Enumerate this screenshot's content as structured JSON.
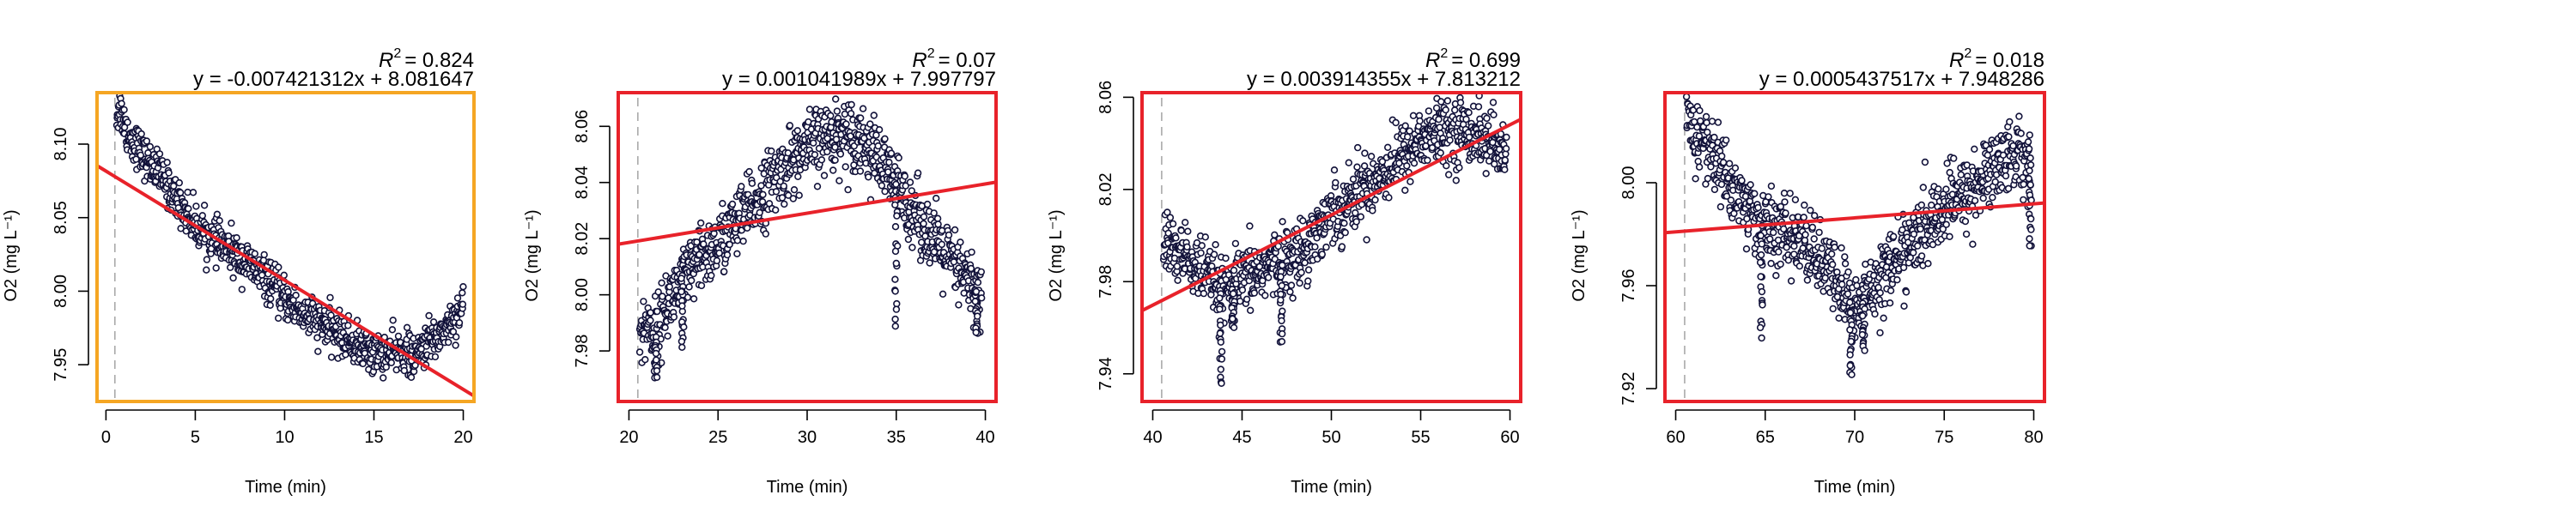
{
  "chart_data": [
    {
      "type": "scatter",
      "ylabel": "O2 (mg L⁻¹)",
      "xlabel": "Time (min)",
      "r2_label": "R",
      "r2_sup": "2",
      "r2_value": "= 0.824",
      "equation": "y = -0.007421312x + 8.081647",
      "frame_color": "#f5a623",
      "xlim": [
        -0.5,
        20.6
      ],
      "ylim": [
        7.925,
        8.135
      ],
      "xticks": [
        0,
        5,
        10,
        15,
        20
      ],
      "xtick_labels": [
        "0",
        "5",
        "10",
        "15",
        "20"
      ],
      "yticks": [
        7.95,
        8.0,
        8.05,
        8.1
      ],
      "ytick_labels": [
        "7.95",
        "8.00",
        "8.05",
        "8.10"
      ],
      "vline_x": 0.5,
      "fit": {
        "slope": -0.007421312,
        "intercept": 8.081647
      },
      "trend_x": [
        0.6,
        0.8,
        1.0,
        1.3,
        1.7,
        2.2,
        3.0,
        4.0,
        5.0,
        6.0,
        7.0,
        8.0,
        9.0,
        10.0,
        11.0,
        12.0,
        13.0,
        14.0,
        15.0,
        16.0,
        16.8,
        17.2,
        17.6,
        18.0,
        18.5,
        19.0,
        19.5,
        20.0
      ],
      "trend_y": [
        8.12,
        8.125,
        8.115,
        8.105,
        8.1,
        8.09,
        8.08,
        8.062,
        8.045,
        8.035,
        8.027,
        8.018,
        8.008,
        7.995,
        7.985,
        7.978,
        7.971,
        7.963,
        7.958,
        7.958,
        7.96,
        7.952,
        7.96,
        7.965,
        7.968,
        7.975,
        7.982,
        7.99
      ],
      "noise": 0.007,
      "dips": []
    },
    {
      "type": "scatter",
      "ylabel": "O2 (mg L⁻¹)",
      "xlabel": "Time (min)",
      "r2_label": "R",
      "r2_sup": "2",
      "r2_value": "= 0.07",
      "equation": "y = 0.001041989x + 7.997797",
      "frame_color": "#e8222a",
      "xlim": [
        19.4,
        40.6
      ],
      "ylim": [
        7.962,
        8.072
      ],
      "xticks": [
        20,
        25,
        30,
        35,
        40
      ],
      "xtick_labels": [
        "20",
        "25",
        "30",
        "35",
        "40"
      ],
      "yticks": [
        7.98,
        8.0,
        8.02,
        8.04,
        8.06
      ],
      "ytick_labels": [
        "7.98",
        "8.00",
        "8.02",
        "8.04",
        "8.06"
      ],
      "vline_x": 20.5,
      "fit": {
        "slope": 0.001041989,
        "intercept": 7.997797
      },
      "trend_x": [
        20.6,
        21.0,
        21.5,
        22.0,
        23.0,
        24.0,
        25.0,
        26.0,
        27.0,
        28.0,
        29.0,
        30.0,
        31.0,
        32.0,
        33.0,
        34.0,
        35.0,
        36.0,
        37.0,
        38.0,
        39.0,
        39.8
      ],
      "trend_y": [
        7.985,
        7.99,
        7.985,
        7.995,
        8.005,
        8.012,
        8.018,
        8.025,
        8.032,
        8.04,
        8.047,
        8.052,
        8.056,
        8.058,
        8.056,
        8.048,
        8.038,
        8.03,
        8.02,
        8.012,
        8.005,
        8.0
      ],
      "noise": 0.006,
      "dips": [
        {
          "x": 21.5,
          "y": 7.97
        },
        {
          "x": 23.0,
          "y": 7.982
        },
        {
          "x": 35.0,
          "y": 7.988
        },
        {
          "x": 39.5,
          "y": 7.986
        }
      ]
    },
    {
      "type": "scatter",
      "ylabel": "O2 (mg L⁻¹)",
      "xlabel": "Time (min)",
      "r2_label": "R",
      "r2_sup": "2",
      "r2_value": "= 0.699",
      "equation": "y = 0.003914355x + 7.813212",
      "frame_color": "#e8222a",
      "xlim": [
        39.4,
        60.6
      ],
      "ylim": [
        7.928,
        8.062
      ],
      "xticks": [
        40,
        45,
        50,
        55,
        60
      ],
      "xtick_labels": [
        "40",
        "45",
        "50",
        "55",
        "60"
      ],
      "yticks": [
        7.94,
        7.98,
        8.02,
        8.06
      ],
      "ytick_labels": [
        "7.94",
        "7.98",
        "8.02",
        "8.06"
      ],
      "vline_x": 40.5,
      "fit": {
        "slope": 0.003914355,
        "intercept": 7.813212
      },
      "trend_x": [
        40.6,
        41.0,
        42.0,
        43.0,
        44.0,
        45.0,
        46.0,
        47.0,
        48.0,
        49.0,
        50.0,
        51.0,
        52.0,
        53.0,
        54.0,
        55.0,
        56.0,
        57.0,
        58.0,
        59.0,
        59.8
      ],
      "trend_y": [
        7.998,
        7.995,
        7.99,
        7.982,
        7.975,
        7.98,
        7.985,
        7.988,
        7.99,
        8.0,
        8.01,
        8.015,
        8.022,
        8.028,
        8.035,
        8.042,
        8.045,
        8.045,
        8.045,
        8.04,
        8.032
      ],
      "noise": 0.007,
      "dips": [
        {
          "x": 43.8,
          "y": 7.935
        },
        {
          "x": 47.2,
          "y": 7.952
        },
        {
          "x": 44.5,
          "y": 7.96
        }
      ]
    },
    {
      "type": "scatter",
      "ylabel": "O2 (mg L⁻¹)",
      "xlabel": "Time (min)",
      "r2_label": "R",
      "r2_sup": "2",
      "r2_value": "= 0.018",
      "equation": "y = 0.0005437517x + 7.948286",
      "frame_color": "#e8222a",
      "xlim": [
        59.4,
        80.6
      ],
      "ylim": [
        7.915,
        8.035
      ],
      "xticks": [
        60,
        65,
        70,
        75,
        80
      ],
      "xtick_labels": [
        "60",
        "65",
        "70",
        "75",
        "80"
      ],
      "yticks": [
        7.92,
        7.96,
        8.0
      ],
      "ytick_labels": [
        "7.92",
        "7.96",
        "8.00"
      ],
      "vline_x": 60.5,
      "fit": {
        "slope": 0.0005437517,
        "intercept": 7.948286
      },
      "trend_x": [
        60.6,
        61.0,
        62.0,
        63.0,
        64.0,
        65.0,
        66.0,
        67.0,
        68.0,
        69.0,
        70.0,
        71.0,
        72.0,
        73.0,
        74.0,
        75.0,
        76.0,
        77.0,
        78.0,
        79.0,
        79.8
      ],
      "trend_y": [
        8.025,
        8.02,
        8.012,
        8.0,
        7.99,
        7.982,
        7.98,
        7.978,
        7.97,
        7.962,
        7.95,
        7.96,
        7.968,
        7.975,
        7.982,
        7.99,
        7.995,
        8.0,
        8.008,
        8.012,
        8.008
      ],
      "noise": 0.007,
      "dips": [
        {
          "x": 64.8,
          "y": 7.94
        },
        {
          "x": 69.8,
          "y": 7.925
        },
        {
          "x": 70.5,
          "y": 7.935
        },
        {
          "x": 79.8,
          "y": 7.975
        }
      ]
    }
  ]
}
